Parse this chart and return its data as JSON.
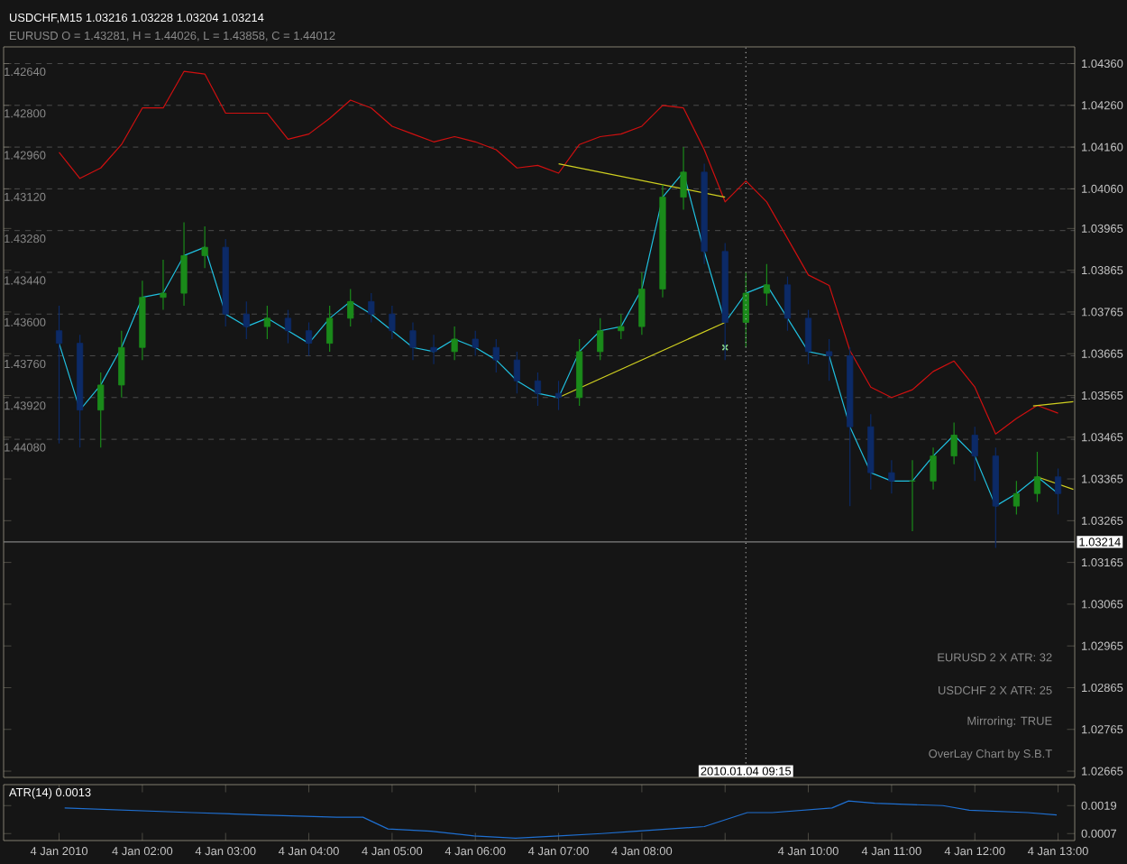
{
  "chart_data": [
    {
      "type": "line",
      "title": "USDCHF,M15 1.03216 1.03228 1.03204 1.03214",
      "subtitle": "EURUSD O = 1.43281, H = 1.44026, L = 1.43858, C = 1.44012",
      "annotations": [
        "EURUSD 2 X ATR: 32",
        "USDCHF 2 X ATR: 25",
        "Mirroring: TRUE",
        "OverLay Chart by S.B.T"
      ],
      "x": [
        "2010-01-04T01:00",
        "2010-01-04T01:15",
        "2010-01-04T01:30",
        "2010-01-04T01:45",
        "2010-01-04T02:00",
        "2010-01-04T02:15",
        "2010-01-04T02:30",
        "2010-01-04T02:45",
        "2010-01-04T03:00",
        "2010-01-04T03:15",
        "2010-01-04T03:30",
        "2010-01-04T03:45",
        "2010-01-04T04:00",
        "2010-01-04T04:15",
        "2010-01-04T04:30",
        "2010-01-04T04:45",
        "2010-01-04T05:00",
        "2010-01-04T05:15",
        "2010-01-04T05:30",
        "2010-01-04T05:45",
        "2010-01-04T06:00",
        "2010-01-04T06:15",
        "2010-01-04T06:30",
        "2010-01-04T06:45",
        "2010-01-04T07:00",
        "2010-01-04T07:15",
        "2010-01-04T07:30",
        "2010-01-04T07:45",
        "2010-01-04T08:00",
        "2010-01-04T08:15",
        "2010-01-04T08:30",
        "2010-01-04T08:45",
        "2010-01-04T09:00",
        "2010-01-04T09:15",
        "2010-01-04T09:30",
        "2010-01-04T09:45",
        "2010-01-04T10:00",
        "2010-01-04T10:15",
        "2010-01-04T10:30",
        "2010-01-04T10:45",
        "2010-01-04T11:00",
        "2010-01-04T11:15",
        "2010-01-04T11:30",
        "2010-01-04T11:45",
        "2010-01-04T12:00",
        "2010-01-04T12:15",
        "2010-01-04T12:30",
        "2010-01-04T12:45",
        "2010-01-04T13:00"
      ],
      "xlim": [
        "2010-01-04T00:20",
        "2010-01-04T13:12"
      ],
      "ylim": [
        1.0265,
        1.044
      ],
      "y2lim": [
        1.45376,
        1.42576
      ],
      "yticks": [
        {
          "value": 1.0436,
          "label": "1.04360"
        },
        {
          "value": 1.0426,
          "label": "1.04260"
        },
        {
          "value": 1.0416,
          "label": "1.04160"
        },
        {
          "value": 1.0406,
          "label": "1.04060"
        },
        1.03965,
        1.03865,
        1.03765,
        1.03665,
        1.03565,
        1.03465,
        1.03365,
        1.03265,
        1.03165,
        1.03065,
        1.02965,
        1.02865,
        1.02765,
        1.02665
      ],
      "y2ticks": [
        {
          "value": 1.4264,
          "label": "1.42640"
        },
        {
          "value": 1.428,
          "label": "1.42800"
        },
        {
          "value": 1.4296,
          "label": "1.42960"
        },
        {
          "value": 1.4312,
          "label": "1.43120"
        },
        {
          "value": 1.4328,
          "label": "1.43280"
        },
        {
          "value": 1.4344,
          "label": "1.43440"
        },
        {
          "value": 1.436,
          "label": "1.43600"
        },
        {
          "value": 1.4376,
          "label": "1.43760"
        },
        {
          "value": 1.4392,
          "label": "1.43920"
        },
        {
          "value": 1.4408,
          "label": "1.44080"
        }
      ],
      "tick_labels": "y",
      "grid": "y",
      "marker": "none",
      "line_style": "solid",
      "ref_lines": [
        {
          "axis": "y",
          "value": 1.03214,
          "label": "1.03214",
          "color": "#808080",
          "line_style": "solid"
        },
        {
          "axis": "x",
          "value": "2010-01-04T09:15",
          "label": "2010.01.04 09:15",
          "color": "#b0b0b0",
          "line_style": "dotted"
        }
      ],
      "series": [
        {
          "type": "line",
          "axis": "y2",
          "color": "#d01010",
          "values": [
            1.4298,
            1.4308,
            1.4304,
            1.4295,
            1.4281,
            1.4281,
            1.4267,
            1.4268,
            1.4283,
            1.4283,
            1.4283,
            1.4293,
            1.4291,
            1.4285,
            1.4278,
            1.4281,
            1.4288,
            1.4291,
            1.4294,
            1.4292,
            1.4294,
            1.4297,
            1.4304,
            1.4303,
            1.4306,
            1.4295,
            1.4292,
            1.4291,
            1.4288,
            1.428,
            1.4281,
            1.4297,
            1.4317,
            1.4309,
            1.4317,
            1.4331,
            1.4345,
            1.4349,
            1.4374,
            1.4388,
            1.4392,
            1.4389,
            1.4382,
            1.4378,
            1.4388,
            1.4406,
            1.44,
            1.4395,
            1.4398
          ]
        },
        {
          "type": "line",
          "color": "#20c0e0",
          "values": [
            1.0369,
            1.0353,
            1.0359,
            1.0368,
            1.038,
            1.0381,
            1.039,
            1.0392,
            1.0376,
            1.0373,
            1.0375,
            1.0372,
            1.0369,
            1.0375,
            1.0379,
            1.0376,
            1.0372,
            1.0368,
            1.0367,
            1.037,
            1.0368,
            1.0365,
            1.036,
            1.0357,
            1.0356,
            1.0367,
            1.0372,
            1.0373,
            1.0382,
            1.0404,
            1.041,
            1.0391,
            1.0374,
            1.0381,
            1.0383,
            1.0375,
            1.0367,
            1.0366,
            1.0349,
            1.0338,
            1.0336,
            1.0336,
            1.0342,
            1.0347,
            1.0342,
            1.033,
            1.0333,
            1.0337,
            1.0333
          ]
        },
        {
          "type": "line",
          "color": "#d0d020",
          "x": [
            "2010-01-04T07:00",
            "2010-01-04T09:00"
          ],
          "values": [
            1.0412,
            1.0404
          ]
        },
        {
          "type": "line",
          "color": "#d0d020",
          "x": [
            "2010-01-04T07:00",
            "2010-01-04T09:00"
          ],
          "values": [
            1.0356,
            1.0374
          ]
        },
        {
          "type": "line",
          "color": "#d0d020",
          "x": [
            "2010-01-04T12:42",
            "2010-01-04T13:11"
          ],
          "values": [
            1.0354,
            1.0355
          ]
        },
        {
          "type": "line",
          "color": "#d0d020",
          "x": [
            "2010-01-04T12:45",
            "2010-01-04T13:11"
          ],
          "values": [
            1.0337,
            1.0334
          ]
        },
        {
          "type": "scatter",
          "marker": "cross",
          "color": "#90e090",
          "x": [
            "2010-01-04T09:00"
          ],
          "values": [
            1.0368
          ]
        },
        {
          "type": "candlestick",
          "ohlc": [
            [
              1.0372,
              1.0378,
              1.0345,
              1.0369
            ],
            [
              1.0369,
              1.0371,
              1.0344,
              1.0353
            ],
            [
              1.0353,
              1.0362,
              1.0344,
              1.0359
            ],
            [
              1.0359,
              1.0372,
              1.0356,
              1.0368
            ],
            [
              1.0368,
              1.0384,
              1.0365,
              1.038
            ],
            [
              1.038,
              1.0389,
              1.0377,
              1.0381
            ],
            [
              1.0381,
              1.0398,
              1.0378,
              1.039
            ],
            [
              1.039,
              1.0397,
              1.0387,
              1.0392
            ],
            [
              1.0392,
              1.0394,
              1.0373,
              1.0376
            ],
            [
              1.0376,
              1.0379,
              1.037,
              1.0373
            ],
            [
              1.0373,
              1.0378,
              1.037,
              1.0375
            ],
            [
              1.0375,
              1.0377,
              1.0369,
              1.0372
            ],
            [
              1.0372,
              1.0374,
              1.0366,
              1.0369
            ],
            [
              1.0369,
              1.0378,
              1.0367,
              1.0375
            ],
            [
              1.0375,
              1.0382,
              1.0373,
              1.0379
            ],
            [
              1.0379,
              1.0381,
              1.0374,
              1.0376
            ],
            [
              1.0376,
              1.0378,
              1.037,
              1.0372
            ],
            [
              1.0372,
              1.0374,
              1.0365,
              1.0368
            ],
            [
              1.0368,
              1.0371,
              1.0364,
              1.0367
            ],
            [
              1.0367,
              1.0373,
              1.0365,
              1.037
            ],
            [
              1.037,
              1.0372,
              1.0366,
              1.0368
            ],
            [
              1.0368,
              1.037,
              1.0362,
              1.0365
            ],
            [
              1.0365,
              1.0367,
              1.0357,
              1.036
            ],
            [
              1.036,
              1.0362,
              1.0354,
              1.0357
            ],
            [
              1.0357,
              1.036,
              1.0353,
              1.0356
            ],
            [
              1.0356,
              1.037,
              1.0354,
              1.0367
            ],
            [
              1.0367,
              1.0375,
              1.0365,
              1.0372
            ],
            [
              1.0372,
              1.0376,
              1.037,
              1.0373
            ],
            [
              1.0373,
              1.0386,
              1.0371,
              1.0382
            ],
            [
              1.0382,
              1.0407,
              1.038,
              1.0404
            ],
            [
              1.0404,
              1.0416,
              1.0401,
              1.041
            ],
            [
              1.041,
              1.0412,
              1.0388,
              1.0391
            ],
            [
              1.0391,
              1.0393,
              1.0365,
              1.0374
            ],
            [
              1.0374,
              1.0386,
              1.0368,
              1.0381
            ],
            [
              1.0381,
              1.0388,
              1.0378,
              1.0383
            ],
            [
              1.0383,
              1.0385,
              1.0372,
              1.0375
            ],
            [
              1.0375,
              1.0377,
              1.0364,
              1.0367
            ],
            [
              1.0367,
              1.037,
              1.036,
              1.0366
            ],
            [
              1.0366,
              1.0368,
              1.033,
              1.0349
            ],
            [
              1.0349,
              1.0352,
              1.0334,
              1.0338
            ],
            [
              1.0338,
              1.0341,
              1.0333,
              1.0336
            ],
            [
              1.0336,
              1.0341,
              1.0324,
              1.0336
            ],
            [
              1.0336,
              1.0344,
              1.0334,
              1.0342
            ],
            [
              1.0342,
              1.035,
              1.034,
              1.0347
            ],
            [
              1.0347,
              1.0349,
              1.0336,
              1.0342
            ],
            [
              1.0342,
              1.0344,
              1.032,
              1.033
            ],
            [
              1.033,
              1.0336,
              1.0328,
              1.0333
            ],
            [
              1.0333,
              1.0343,
              1.0331,
              1.0337
            ],
            [
              1.0337,
              1.0339,
              1.0328,
              1.0333
            ]
          ],
          "colors": [
            "#0c2a66",
            "#0c2a66",
            "#1a8a1a",
            "#1a8a1a",
            "#1a8a1a",
            "#1a8a1a",
            "#1a8a1a",
            "#1a8a1a",
            "#0c2a66",
            "#0c2a66",
            "#1a8a1a",
            "#0c2a66",
            "#0c2a66",
            "#1a8a1a",
            "#1a8a1a",
            "#0c2a66",
            "#0c2a66",
            "#0c2a66",
            "#0c2a66",
            "#1a8a1a",
            "#0c2a66",
            "#0c2a66",
            "#0c2a66",
            "#0c2a66",
            "#0c2a66",
            "#1a8a1a",
            "#1a8a1a",
            "#1a8a1a",
            "#1a8a1a",
            "#1a8a1a",
            "#1a8a1a",
            "#0c2a66",
            "#0c2a66",
            "#1a8a1a",
            "#1a8a1a",
            "#0c2a66",
            "#0c2a66",
            "#0c2a66",
            "#0c2a66",
            "#0c2a66",
            "#0c2a66",
            "#1a8a1a",
            "#1a8a1a",
            "#1a8a1a",
            "#0c2a66",
            "#0c2a66",
            "#1a8a1a",
            "#1a8a1a",
            "#0c2a66"
          ]
        }
      ]
    },
    {
      "type": "line",
      "title": "ATR(14) 0.0013",
      "xlim": [
        "2010-01-04T00:20",
        "2010-01-04T13:12"
      ],
      "ylim": [
        0.0004,
        0.0028
      ],
      "yticks": [
        0.0019,
        0.0007
      ],
      "xticks": [
        {
          "value": "2010-01-04T01:00",
          "label": "4 Jan 2010"
        },
        {
          "value": "2010-01-04T02:00",
          "label": "4 Jan 02:00"
        },
        {
          "value": "2010-01-04T03:00",
          "label": "4 Jan 03:00"
        },
        {
          "value": "2010-01-04T04:00",
          "label": "4 Jan 04:00"
        },
        {
          "value": "2010-01-04T05:00",
          "label": "4 Jan 05:00"
        },
        {
          "value": "2010-01-04T06:00",
          "label": "4 Jan 06:00"
        },
        {
          "value": "2010-01-04T07:00",
          "label": "4 Jan 07:00"
        },
        {
          "value": "2010-01-04T08:00",
          "label": "4 Jan 08:00"
        },
        {
          "value": "2010-01-04T09:00",
          "label": null
        },
        {
          "value": "2010-01-04T10:00",
          "label": "4 Jan 10:00"
        },
        {
          "value": "2010-01-04T11:00",
          "label": "4 Jan 11:00"
        },
        {
          "value": "2010-01-04T12:00",
          "label": "4 Jan 12:00"
        },
        {
          "value": "2010-01-04T13:00",
          "label": "4 Jan 13:00"
        }
      ],
      "marker": "none",
      "line_style": "solid",
      "series": [
        {
          "color": "#1f6fd0",
          "x": [
            "2010-01-04T01:04",
            "2010-01-04T02:36",
            "2010-01-04T03:25",
            "2010-01-04T04:20",
            "2010-01-04T04:39",
            "2010-01-04T04:57",
            "2010-01-04T05:28",
            "2010-01-04T05:59",
            "2010-01-04T06:29",
            "2010-01-04T07:00",
            "2010-01-04T07:31",
            "2010-01-04T07:56",
            "2010-01-04T08:45",
            "2010-01-04T09:16",
            "2010-01-04T09:34",
            "2010-01-04T10:17",
            "2010-01-04T10:29",
            "2010-01-04T10:48",
            "2010-01-04T11:37",
            "2010-01-04T11:56",
            "2010-01-04T12:38",
            "2010-01-04T12:59"
          ],
          "values": [
            0.0018,
            0.0016,
            0.0015,
            0.0014,
            0.0014,
            0.0009,
            0.0008,
            0.0006,
            0.0005,
            0.0006,
            0.0007,
            0.0008,
            0.001,
            0.0016,
            0.0016,
            0.0018,
            0.0021,
            0.002,
            0.0019,
            0.0017,
            0.0016,
            0.0015
          ]
        }
      ]
    }
  ]
}
